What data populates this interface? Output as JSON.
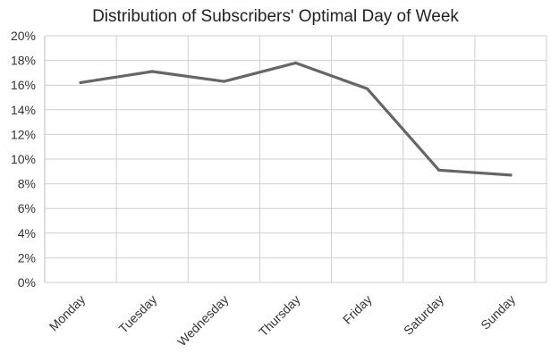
{
  "chart_data": {
    "type": "line",
    "title": "Distribution of Subscribers' Optimal Day of Week",
    "xlabel": "",
    "ylabel": "",
    "categories": [
      "Monday",
      "Tuesday",
      "Wednesday",
      "Thursday",
      "Friday",
      "Saturday",
      "Sunday"
    ],
    "series": [
      {
        "values": [
          16.2,
          17.1,
          16.3,
          17.8,
          15.7,
          9.1,
          8.7
        ],
        "color": "#666666"
      }
    ],
    "ylim": [
      0,
      20
    ],
    "yticks": [
      0,
      2,
      4,
      6,
      8,
      10,
      12,
      14,
      16,
      18,
      20
    ],
    "ytick_format": "percent",
    "grid": true,
    "legend": "none"
  }
}
